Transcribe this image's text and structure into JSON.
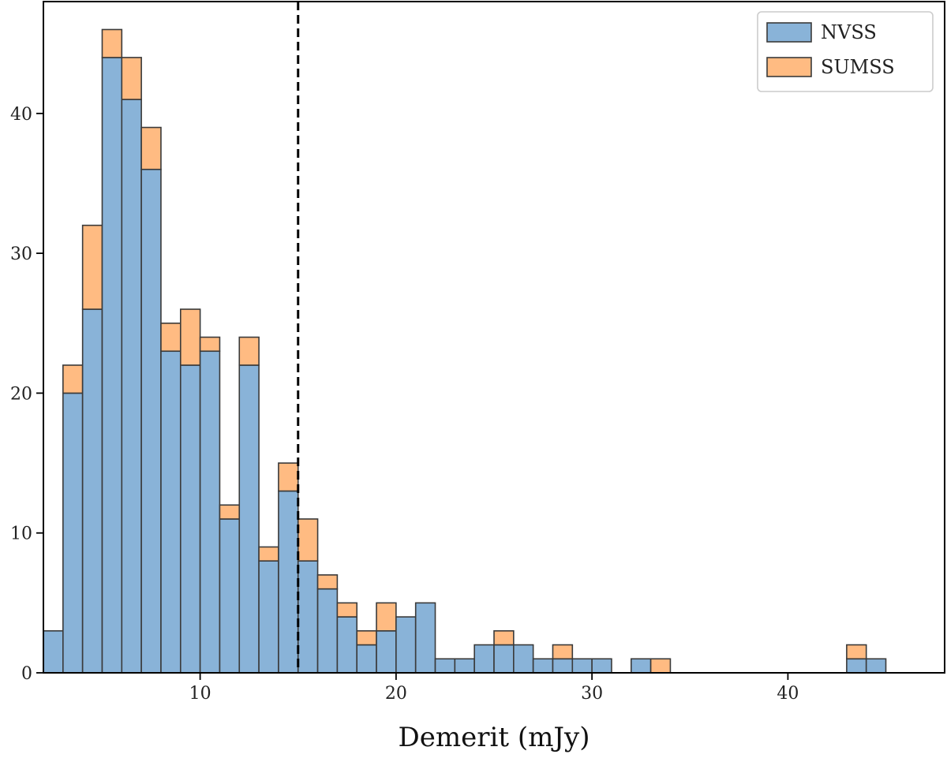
{
  "chart_data": {
    "type": "bar",
    "subtype": "stacked-histogram",
    "title": "",
    "xlabel": "Demerit (mJy)",
    "ylabel": "",
    "xlim": [
      2,
      48
    ],
    "ylim": [
      0,
      48
    ],
    "xticks": [
      10,
      20,
      30,
      40
    ],
    "yticks": [
      0,
      10,
      20,
      30,
      40
    ],
    "grid": false,
    "legend_position": "top-right",
    "bin_width": 1,
    "bin_starts": [
      2,
      3,
      4,
      5,
      6,
      7,
      8,
      9,
      10,
      11,
      12,
      13,
      14,
      15,
      16,
      17,
      18,
      19,
      20,
      21,
      22,
      23,
      24,
      25,
      26,
      27,
      28,
      29,
      30,
      31,
      32,
      33,
      34,
      35,
      36,
      37,
      38,
      39,
      40,
      41,
      42,
      43,
      44
    ],
    "series": [
      {
        "name": "NVSS",
        "color": "#89b3d8",
        "values": [
          3,
          20,
          26,
          44,
          41,
          36,
          23,
          22,
          23,
          11,
          22,
          8,
          13,
          8,
          6,
          4,
          2,
          3,
          4,
          5,
          1,
          1,
          2,
          2,
          2,
          1,
          1,
          1,
          1,
          0,
          1,
          0,
          0,
          0,
          0,
          0,
          0,
          0,
          0,
          0,
          0,
          1,
          1
        ]
      },
      {
        "name": "SUMSS",
        "color": "#ffbb82",
        "values": [
          0,
          2,
          6,
          2,
          3,
          3,
          2,
          4,
          1,
          1,
          2,
          1,
          2,
          3,
          1,
          1,
          1,
          2,
          0,
          0,
          0,
          0,
          0,
          1,
          0,
          0,
          1,
          0,
          0,
          0,
          0,
          1,
          0,
          0,
          0,
          0,
          0,
          0,
          0,
          0,
          0,
          1,
          0
        ]
      }
    ],
    "annotations": [
      {
        "type": "vertical-dashed-line",
        "x": 15,
        "color": "#000000"
      }
    ]
  }
}
